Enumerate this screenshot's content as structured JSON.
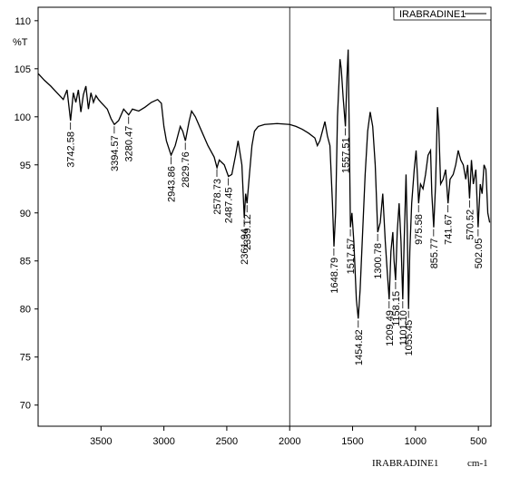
{
  "chart_data": {
    "type": "line",
    "y_label": "%T",
    "x_label": "cm-1",
    "footer_label": "IRABRADINE1",
    "xlim": [
      4000,
      400
    ],
    "xticks": [
      3500,
      3000,
      2500,
      2000,
      1500,
      1000,
      500
    ],
    "ylim": [
      67.8,
      111.4
    ],
    "yticks": [
      70,
      75,
      80,
      85,
      90,
      95,
      100,
      105,
      110
    ],
    "legend": "top-right",
    "x": [
      4000,
      3950,
      3900,
      3850,
      3800,
      3770,
      3742,
      3720,
      3700,
      3680,
      3660,
      3640,
      3620,
      3600,
      3580,
      3560,
      3540,
      3520,
      3500,
      3450,
      3420,
      3394,
      3360,
      3320,
      3280,
      3250,
      3200,
      3150,
      3100,
      3050,
      3020,
      3000,
      2980,
      2943,
      2910,
      2870,
      2850,
      2829,
      2800,
      2780,
      2750,
      2700,
      2650,
      2600,
      2578,
      2560,
      2520,
      2487,
      2460,
      2430,
      2410,
      2380,
      2361,
      2350,
      2339,
      2320,
      2300,
      2280,
      2250,
      2200,
      2100,
      2000,
      1950,
      1900,
      1850,
      1800,
      1780,
      1760,
      1740,
      1720,
      1700,
      1680,
      1660,
      1648,
      1635,
      1620,
      1600,
      1590,
      1575,
      1557,
      1545,
      1535,
      1525,
      1517,
      1505,
      1490,
      1470,
      1455,
      1440,
      1420,
      1400,
      1380,
      1360,
      1340,
      1320,
      1300,
      1280,
      1260,
      1240,
      1225,
      1209,
      1195,
      1180,
      1170,
      1158,
      1145,
      1130,
      1115,
      1101,
      1090,
      1075,
      1065,
      1055,
      1045,
      1030,
      1010,
      995,
      985,
      975,
      960,
      940,
      920,
      900,
      880,
      870,
      855,
      840,
      825,
      815,
      800,
      780,
      760,
      741,
      725,
      700,
      680,
      660,
      640,
      620,
      600,
      585,
      570,
      555,
      540,
      520,
      502,
      485,
      470,
      455,
      440,
      425,
      410
    ],
    "series": [
      {
        "name": "IRABRADINE1",
        "color": "#000000",
        "values": [
          104.5,
          103.8,
          103.2,
          102.5,
          101.8,
          102.8,
          99.6,
          102.5,
          101.5,
          102.8,
          100.5,
          102.3,
          103.2,
          100.8,
          102.5,
          101.5,
          102.2,
          101.8,
          101.5,
          100.8,
          99.8,
          99.2,
          99.6,
          100.8,
          100.2,
          100.8,
          100.6,
          101.0,
          101.5,
          101.8,
          101.4,
          99.0,
          97.5,
          96.0,
          97.0,
          99.0,
          98.5,
          97.5,
          99.5,
          100.6,
          100.0,
          98.5,
          97.0,
          95.8,
          94.7,
          95.5,
          95.0,
          93.8,
          94.0,
          96.0,
          97.5,
          95.0,
          89.5,
          92.0,
          91.0,
          94.0,
          97.0,
          98.5,
          99.0,
          99.2,
          99.3,
          99.2,
          99.0,
          98.7,
          98.3,
          97.8,
          97.0,
          97.5,
          98.5,
          99.5,
          98.0,
          97.0,
          91.0,
          86.5,
          90.0,
          100.0,
          106.0,
          105.0,
          102.0,
          99.0,
          104.0,
          107.0,
          97.0,
          88.5,
          90.0,
          87.0,
          81.0,
          79.0,
          82.0,
          88.0,
          94.0,
          98.5,
          100.5,
          99.0,
          95.0,
          88.0,
          89.0,
          92.0,
          87.0,
          84.0,
          81.0,
          86.0,
          88.0,
          85.0,
          83.0,
          88.0,
          91.0,
          87.0,
          81.0,
          87.0,
          94.0,
          88.0,
          80.0,
          86.0,
          91.0,
          94.5,
          96.5,
          94.0,
          91.0,
          93.0,
          92.5,
          94.0,
          96.0,
          96.5,
          92.0,
          88.5,
          93.0,
          101.0,
          99.0,
          93.0,
          93.5,
          94.5,
          91.0,
          93.5,
          94.0,
          95.0,
          96.5,
          95.5,
          95.0,
          93.5,
          95.0,
          91.5,
          95.5,
          93.0,
          94.5,
          88.5,
          93.0,
          92.0,
          95.0,
          94.5,
          90.0,
          89.0
        ]
      }
    ],
    "peaks": {
      "x": [
        3742.58,
        3394.57,
        3280.47,
        2943.86,
        2829.76,
        2578.73,
        2487.45,
        2361.94,
        2339.12,
        1648.79,
        1557.51,
        1517.57,
        1454.82,
        1300.78,
        1209.49,
        1158.15,
        1101.1,
        1055.45,
        975.58,
        855.77,
        741.67,
        570.52,
        502.05
      ],
      "y": [
        99.6,
        99.2,
        100.2,
        96.0,
        97.5,
        94.7,
        93.8,
        89.5,
        91.0,
        86.5,
        99.0,
        88.5,
        79.0,
        88.0,
        81.0,
        83.0,
        81.0,
        80.0,
        91.0,
        88.5,
        91.0,
        91.5,
        88.5
      ],
      "labels": [
        "3742.58",
        "3394.57",
        "3280.47",
        "2943.86",
        "2829.76",
        "2578.73",
        "2487.45",
        "2361.94",
        "2339.12",
        "1648.79",
        "1557.51",
        "1517.57",
        "1454.82",
        "1300.78",
        "1209.49",
        "1158.15",
        "1101.10",
        "1055.45",
        "975.58",
        "855.77",
        "741.67",
        "570.52",
        "502.05"
      ]
    }
  }
}
